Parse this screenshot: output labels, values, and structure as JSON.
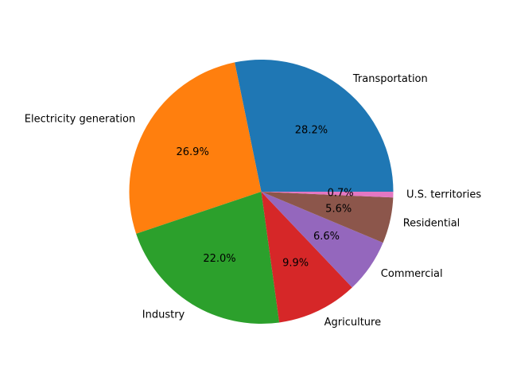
{
  "chart_data": {
    "type": "pie",
    "title": "",
    "start_angle_deg": 0,
    "direction": "counterclockwise",
    "slices": [
      {
        "label": "Transportation",
        "value": 28.2,
        "pct_label": "28.2%",
        "color": "#1f77b4"
      },
      {
        "label": "Electricity generation",
        "value": 26.9,
        "pct_label": "26.9%",
        "color": "#ff7f0e"
      },
      {
        "label": "Industry",
        "value": 22.0,
        "pct_label": "22.0%",
        "color": "#2ca02c"
      },
      {
        "label": "Agriculture",
        "value": 9.9,
        "pct_label": "9.9%",
        "color": "#d62728"
      },
      {
        "label": "Commercial",
        "value": 6.6,
        "pct_label": "6.6%",
        "color": "#9467bd"
      },
      {
        "label": "Residential",
        "value": 5.6,
        "pct_label": "5.6%",
        "color": "#8c564b"
      },
      {
        "label": "U.S. territories",
        "value": 0.7,
        "pct_label": "0.7%",
        "color": "#e377c2"
      }
    ]
  }
}
